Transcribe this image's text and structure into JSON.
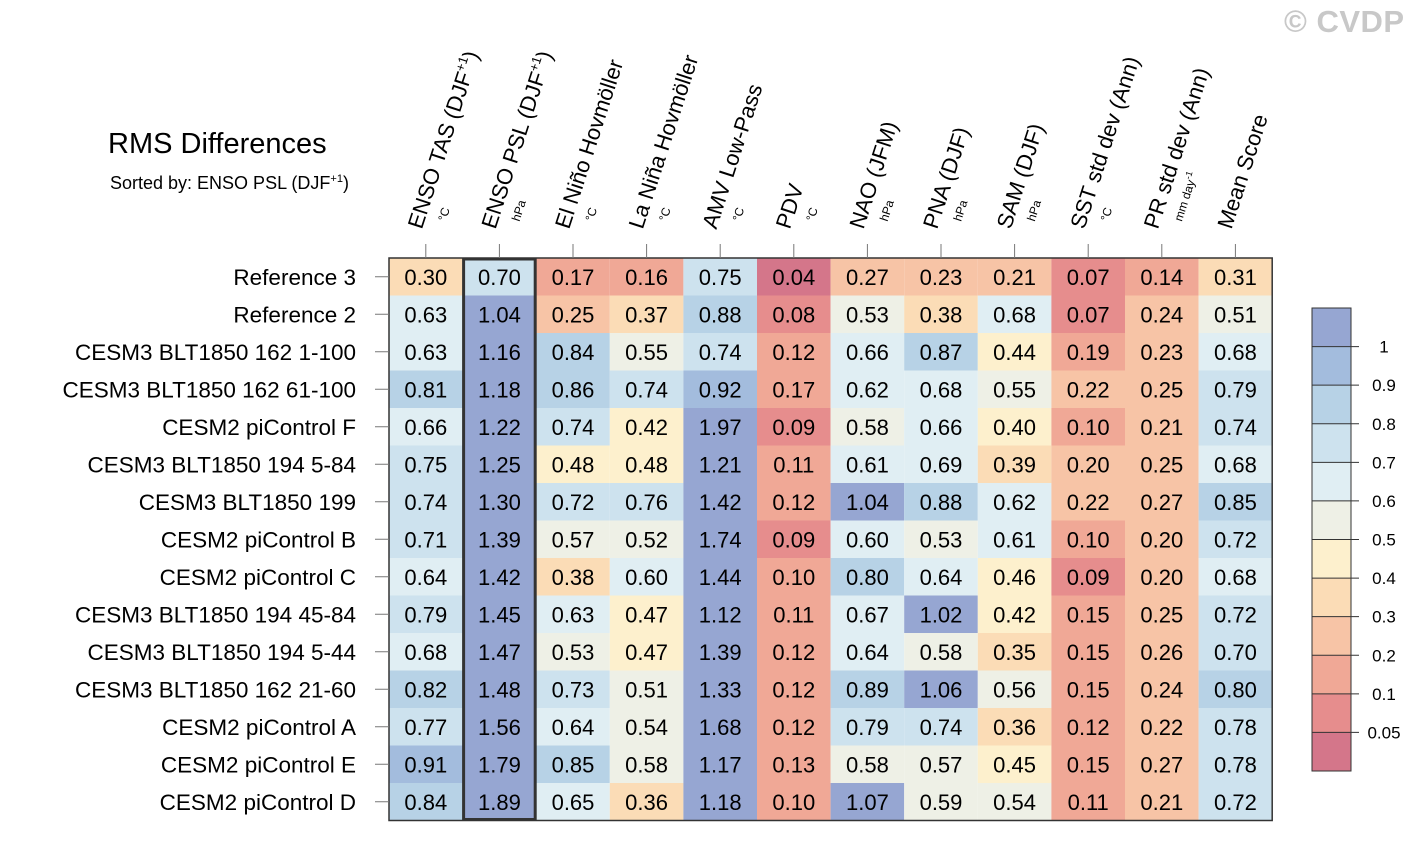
{
  "watermark": "© CVDP",
  "title": "RMS Differences",
  "subtitle": {
    "prefix": "Sorted by: ENSO PSL (DJF",
    "sup": "+1",
    "suffix": ")"
  },
  "chart_data": {
    "type": "heatmap",
    "title": "RMS Differences",
    "sorted_by_column": 1,
    "columns": [
      {
        "label": "ENSO TAS (DJF",
        "sup": "+1",
        "tail": ")",
        "unit": "°C"
      },
      {
        "label": "ENSO PSL (DJF",
        "sup": "+1",
        "tail": ")",
        "unit": "hPa"
      },
      {
        "label": "El Niño Hovmöller",
        "unit": "°C"
      },
      {
        "label": "La Niña Hovmöller",
        "unit": "°C"
      },
      {
        "label": "AMV Low-Pass",
        "unit": "°C"
      },
      {
        "label": "PDV",
        "unit": "°C"
      },
      {
        "label": "NAO (JFM)",
        "unit": "hPa"
      },
      {
        "label": "PNA (DJF)",
        "unit": "hPa"
      },
      {
        "label": "SAM (DJF)",
        "unit": "hPa"
      },
      {
        "label": "SST std dev (Ann)",
        "unit": "°C"
      },
      {
        "label": "PR std dev (Ann)",
        "unit": "mm day",
        "unit_sup": "-1"
      },
      {
        "label": "Mean Score",
        "unit": ""
      }
    ],
    "rows": [
      {
        "name": "Reference 3",
        "values": [
          0.3,
          0.7,
          0.17,
          0.16,
          0.75,
          0.04,
          0.27,
          0.23,
          0.21,
          0.07,
          0.14,
          0.31
        ]
      },
      {
        "name": "Reference 2",
        "values": [
          0.63,
          1.04,
          0.25,
          0.37,
          0.88,
          0.08,
          0.53,
          0.38,
          0.68,
          0.07,
          0.24,
          0.51
        ]
      },
      {
        "name": "CESM3 BLT1850 162 1-100",
        "values": [
          0.63,
          1.16,
          0.84,
          0.55,
          0.74,
          0.12,
          0.66,
          0.87,
          0.44,
          0.19,
          0.23,
          0.68
        ]
      },
      {
        "name": "CESM3 BLT1850 162 61-100",
        "values": [
          0.81,
          1.18,
          0.86,
          0.74,
          0.92,
          0.17,
          0.62,
          0.68,
          0.55,
          0.22,
          0.25,
          0.79
        ]
      },
      {
        "name": "CESM2 piControl F",
        "values": [
          0.66,
          1.22,
          0.74,
          0.42,
          1.97,
          0.09,
          0.58,
          0.66,
          0.4,
          0.1,
          0.21,
          0.74
        ]
      },
      {
        "name": "CESM3 BLT1850 194 5-84",
        "values": [
          0.75,
          1.25,
          0.48,
          0.48,
          1.21,
          0.11,
          0.61,
          0.69,
          0.39,
          0.2,
          0.25,
          0.68
        ]
      },
      {
        "name": "CESM3 BLT1850 199",
        "values": [
          0.74,
          1.3,
          0.72,
          0.76,
          1.42,
          0.12,
          1.04,
          0.88,
          0.62,
          0.22,
          0.27,
          0.85
        ]
      },
      {
        "name": "CESM2 piControl B",
        "values": [
          0.71,
          1.39,
          0.57,
          0.52,
          1.74,
          0.09,
          0.6,
          0.53,
          0.61,
          0.1,
          0.2,
          0.72
        ]
      },
      {
        "name": "CESM2 piControl C",
        "values": [
          0.64,
          1.42,
          0.38,
          0.6,
          1.44,
          0.1,
          0.8,
          0.64,
          0.46,
          0.09,
          0.2,
          0.68
        ]
      },
      {
        "name": "CESM3 BLT1850 194 45-84",
        "values": [
          0.79,
          1.45,
          0.63,
          0.47,
          1.12,
          0.11,
          0.67,
          1.02,
          0.42,
          0.15,
          0.25,
          0.72
        ]
      },
      {
        "name": "CESM3 BLT1850 194 5-44",
        "values": [
          0.68,
          1.47,
          0.53,
          0.47,
          1.39,
          0.12,
          0.64,
          0.58,
          0.35,
          0.15,
          0.26,
          0.7
        ]
      },
      {
        "name": "CESM3 BLT1850 162 21-60",
        "values": [
          0.82,
          1.48,
          0.73,
          0.51,
          1.33,
          0.12,
          0.89,
          1.06,
          0.56,
          0.15,
          0.24,
          0.8
        ]
      },
      {
        "name": "CESM2 piControl A",
        "values": [
          0.77,
          1.56,
          0.64,
          0.54,
          1.68,
          0.12,
          0.79,
          0.74,
          0.36,
          0.12,
          0.22,
          0.78
        ]
      },
      {
        "name": "CESM2 piControl E",
        "values": [
          0.91,
          1.79,
          0.85,
          0.58,
          1.17,
          0.13,
          0.58,
          0.57,
          0.45,
          0.15,
          0.27,
          0.78
        ]
      },
      {
        "name": "CESM2 piControl D",
        "values": [
          0.84,
          1.89,
          0.65,
          0.36,
          1.18,
          0.1,
          1.07,
          0.59,
          0.54,
          0.11,
          0.21,
          0.72
        ]
      }
    ],
    "colorbar": {
      "levels": [
        0.05,
        0.1,
        0.2,
        0.3,
        0.4,
        0.5,
        0.6,
        0.7,
        0.8,
        0.9,
        1
      ],
      "labels": [
        "0.05",
        "0.1",
        "0.2",
        "0.3",
        "0.4",
        "0.5",
        "0.6",
        "0.7",
        "0.8",
        "0.9",
        "1"
      ],
      "colors": [
        "#d4768a",
        "#e68d8d",
        "#f0a896",
        "#f7c4a6",
        "#fbdcb6",
        "#fdf0cd",
        "#eef0e6",
        "#e0eef3",
        "#cde2ee",
        "#b7d2e6",
        "#a3bcdd",
        "#96a6d2"
      ]
    }
  }
}
